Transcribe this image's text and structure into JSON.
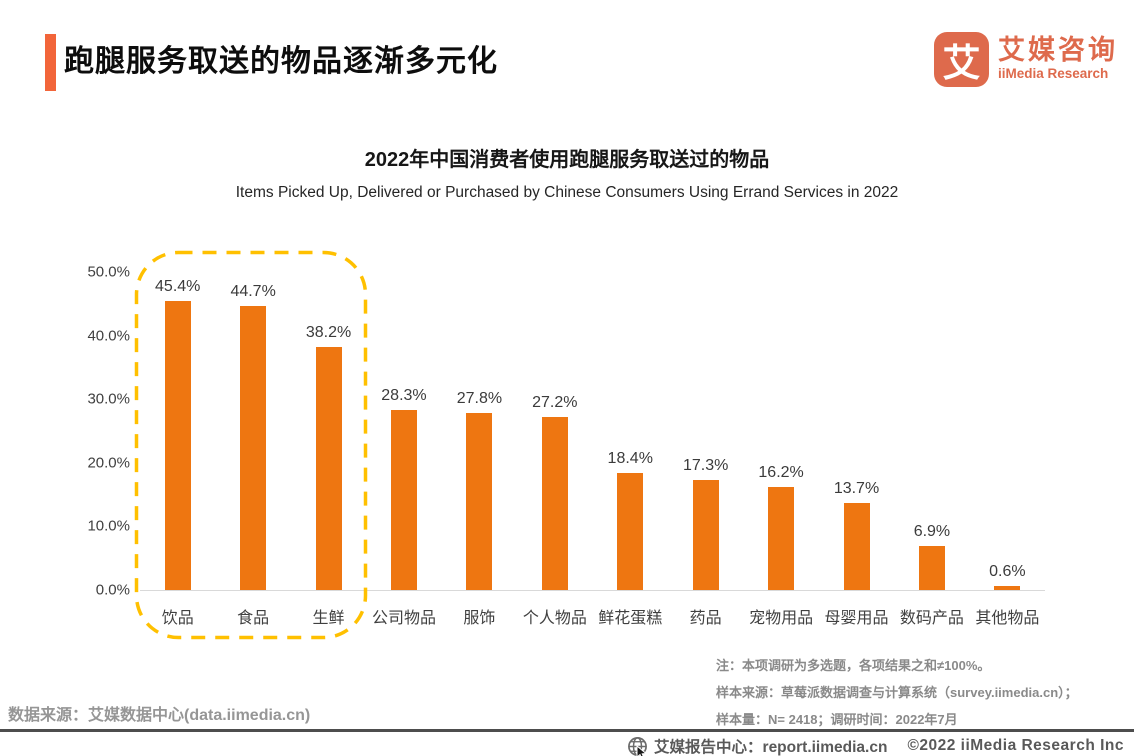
{
  "header": {
    "title": "跑腿服务取送的物品逐渐多元化",
    "logo": {
      "glyph": "艾",
      "name_cn": "艾媒咨询",
      "name_en": "iiMedia Research",
      "brand_color": "#DE6A4C"
    }
  },
  "colors": {
    "accent_bar": "#F2653A",
    "bar": "#EE7611",
    "highlight_dash": "#FFC000",
    "axis_line": "#D9D9D9",
    "note_gray": "#8A8A8A",
    "footer_gray": "#595959"
  },
  "chart_data": {
    "type": "bar",
    "title": "2022年中国消费者使用跑腿服务取送过的物品",
    "subtitle": "Items Picked Up, Delivered or Purchased by Chinese Consumers Using Errand Services in 2022",
    "categories": [
      "饮品",
      "食品",
      "生鲜",
      "公司物品",
      "服饰",
      "个人物品",
      "鲜花蛋糕",
      "药品",
      "宠物用品",
      "母婴用品",
      "数码产品",
      "其他物品"
    ],
    "values": [
      45.4,
      44.7,
      38.2,
      28.3,
      27.8,
      27.2,
      18.4,
      17.3,
      16.2,
      13.7,
      6.9,
      0.6
    ],
    "value_labels": [
      "45.4%",
      "44.7%",
      "38.2%",
      "28.3%",
      "27.8%",
      "27.2%",
      "18.4%",
      "17.3%",
      "16.2%",
      "13.7%",
      "6.9%",
      "0.6%"
    ],
    "y_ticks": [
      "0.0%",
      "10.0%",
      "20.0%",
      "30.0%",
      "40.0%",
      "50.0%"
    ],
    "ylim": [
      0,
      50
    ],
    "xlabel": "",
    "ylabel": "",
    "grid": false,
    "legend_position": "none",
    "bar_color": "#EE7611",
    "highlight": {
      "categories": [
        "饮品",
        "食品",
        "生鲜"
      ],
      "style": "dashed rounded box",
      "color": "#FFC000"
    }
  },
  "notes": {
    "line1": "注：本项调研为多选题，各项结果之和≠100%。",
    "line2": "样本来源：草莓派数据调查与计算系统（survey.iimedia.cn）；",
    "line3": "样本量：N= 2418；调研时间：2022年7月"
  },
  "footer": {
    "data_source": "数据来源：艾媒数据中心(data.iimedia.cn)",
    "report_center": "艾媒报告中心：report.iimedia.cn",
    "copyright": "©2022  iiMedia Research  Inc"
  }
}
